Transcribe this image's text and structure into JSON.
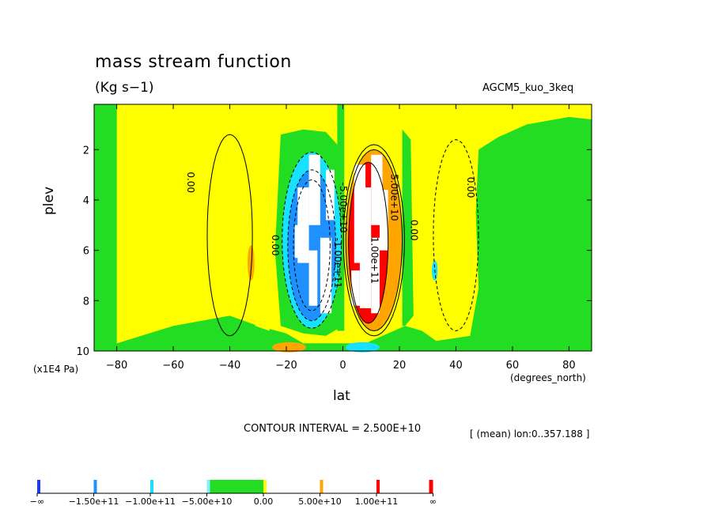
{
  "figure": {
    "title": "mass stream function",
    "units": "(Kg s−1)",
    "dataset": "AGCM5_kuo_3keq",
    "contour_interval": "CONTOUR INTERVAL = 2.500E+10",
    "mean_note": "[ (mean) lon:0..357.188 ]"
  },
  "colors": {
    "deep_blue": "#1a3cff",
    "blue": "#1e90ff",
    "cyan": "#18e0ff",
    "light_cyan": "#80f0ff",
    "green": "#22dd22",
    "yellow": "#ffff00",
    "orange": "#ffa500",
    "red": "#ff0000",
    "white": "#ffffff"
  },
  "colorbar": {
    "labels": [
      "−∞",
      "−1.50e+11",
      "−1.00e+11",
      "−5.00e+10",
      "0.00",
      "5.00e+10",
      "1.00e+11",
      "∞"
    ]
  },
  "chart_data": {
    "type": "heatmap",
    "title": "mass stream function",
    "subtitle": "(Kg s−1)",
    "xlabel": "lat",
    "xunit": "(degrees_north)",
    "ylabel": "plev",
    "yunit": "(x1E4 Pa)",
    "xlim": [
      -88,
      88
    ],
    "ylim": [
      10,
      0.2
    ],
    "x_ticks": [
      -80,
      -60,
      -40,
      -20,
      0,
      20,
      40,
      60,
      80
    ],
    "y_ticks": [
      2,
      4,
      6,
      8,
      10
    ],
    "contour_interval": 25000000000,
    "contour_labels": [
      {
        "lat": -55,
        "plev": 3.3,
        "text": "0.00"
      },
      {
        "lat": -25,
        "plev": 5.8,
        "text": "0.00"
      },
      {
        "lat": -3,
        "plev": 6.5,
        "text": "-1.00e+11"
      },
      {
        "lat": -1,
        "plev": 4.3,
        "text": "-5.00e+10"
      },
      {
        "lat": 10,
        "plev": 6.4,
        "text": "1.00e+11"
      },
      {
        "lat": 17,
        "plev": 3.9,
        "text": "5.00e+10"
      },
      {
        "lat": 24,
        "plev": 5.2,
        "text": "0.00"
      },
      {
        "lat": 44,
        "plev": 3.5,
        "text": "0.00"
      }
    ],
    "cells": {
      "negative_cell": {
        "lat_range": [
          -22,
          0
        ],
        "plev_range": [
          2.2,
          9.0
        ],
        "min": -150000000000
      },
      "positive_cell": {
        "lat_range": [
          2,
          20
        ],
        "plev_range": [
          2.0,
          9.0
        ],
        "max": 150000000000
      }
    },
    "colorbar_levels": [
      -150000000000,
      -100000000000,
      -50000000000,
      0,
      50000000000,
      100000000000
    ]
  }
}
